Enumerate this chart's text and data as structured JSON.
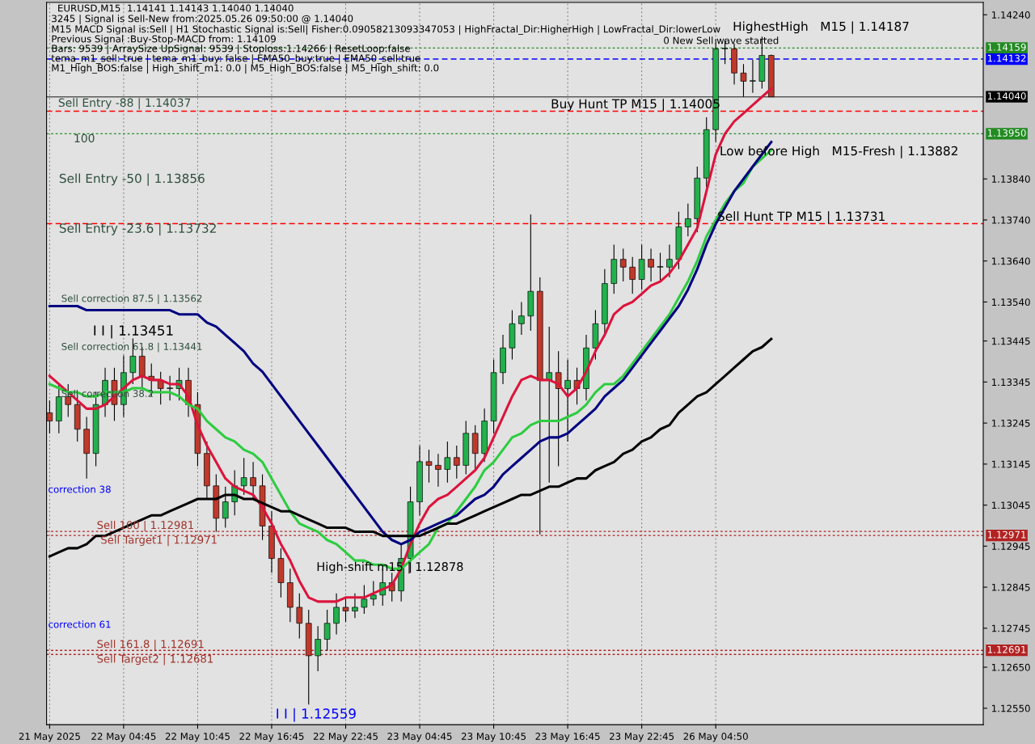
{
  "chart_data": {
    "type": "candlestick",
    "title": "EURUSD,M15  1.14141 1.14143 1.14040 1.14040",
    "categories": [
      "21 May 2025",
      null,
      null,
      null,
      null,
      null,
      null,
      null,
      "22 May 04:45",
      null,
      null,
      null,
      null,
      null,
      null,
      null,
      "22 May 10:45",
      null,
      null,
      null,
      null,
      null,
      null,
      null,
      "22 May 16:45",
      null,
      null,
      null,
      null,
      null,
      null,
      null,
      "22 May 22:45",
      null,
      null,
      null,
      null,
      null,
      null,
      null,
      "23 May 04:45",
      null,
      null,
      null,
      null,
      null,
      null,
      null,
      "23 May 10:45",
      null,
      null,
      null,
      null,
      null,
      null,
      null,
      "23 May 16:45",
      null,
      null,
      null,
      null,
      null,
      null,
      null,
      "23 May 22:45",
      null,
      null,
      null,
      null,
      null,
      null,
      null,
      "26 May 04:50",
      null,
      null,
      null,
      null,
      null,
      null
    ],
    "ohlc": [
      [
        1.1327,
        1.133,
        1.1322,
        1.1325
      ],
      [
        1.1325,
        1.1334,
        1.1322,
        1.13309
      ],
      [
        1.13309,
        1.1334,
        1.1326,
        1.1329
      ],
      [
        1.1329,
        1.1332,
        1.132,
        1.1323
      ],
      [
        1.1323,
        1.1326,
        1.1311,
        1.13171
      ],
      [
        1.13171,
        1.1332,
        1.1314,
        1.1329
      ],
      [
        1.1329,
        1.1338,
        1.1326,
        1.13349
      ],
      [
        1.13349,
        1.1338,
        1.1325,
        1.1329
      ],
      [
        1.1329,
        1.1341,
        1.1326,
        1.13368
      ],
      [
        1.13368,
        1.13451,
        1.1334,
        1.13408
      ],
      [
        1.13408,
        1.1343,
        1.1333,
        1.13359
      ],
      [
        1.13359,
        1.1339,
        1.1331,
        1.13349
      ],
      [
        1.13349,
        1.1337,
        1.1329,
        1.13329
      ],
      [
        1.13329,
        1.1336,
        1.133,
        1.13329
      ],
      [
        1.13329,
        1.1338,
        1.133,
        1.13349
      ],
      [
        1.13349,
        1.1338,
        1.1326,
        1.1329
      ],
      [
        1.1329,
        1.1332,
        1.1314,
        1.13171
      ],
      [
        1.13171,
        1.132,
        1.1306,
        1.13092
      ],
      [
        1.13092,
        1.1312,
        1.1298,
        1.13013
      ],
      [
        1.13013,
        1.1309,
        1.1299,
        1.13053
      ],
      [
        1.13053,
        1.1313,
        1.1302,
        1.13092
      ],
      [
        1.13092,
        1.1316,
        1.1307,
        1.13112
      ],
      [
        1.13112,
        1.1315,
        1.1306,
        1.13092
      ],
      [
        1.13092,
        1.1312,
        1.1296,
        1.12994
      ],
      [
        1.12994,
        1.1303,
        1.1288,
        1.12915
      ],
      [
        1.12915,
        1.1294,
        1.1282,
        1.12856
      ],
      [
        1.12856,
        1.1289,
        1.1276,
        1.12796
      ],
      [
        1.12796,
        1.1283,
        1.1272,
        1.12757
      ],
      [
        1.12757,
        1.1279,
        1.12559,
        1.12678
      ],
      [
        1.12678,
        1.1275,
        1.1264,
        1.12718
      ],
      [
        1.12718,
        1.1279,
        1.1269,
        1.12757
      ],
      [
        1.12757,
        1.1283,
        1.1273,
        1.12796
      ],
      [
        1.12796,
        1.1282,
        1.1276,
        1.12787
      ],
      [
        1.12787,
        1.1283,
        1.1277,
        1.12796
      ],
      [
        1.12796,
        1.1285,
        1.1278,
        1.12816
      ],
      [
        1.12816,
        1.1286,
        1.128,
        1.12826
      ],
      [
        1.12826,
        1.1289,
        1.128,
        1.12856
      ],
      [
        1.12856,
        1.1288,
        1.1281,
        1.12836
      ],
      [
        1.12836,
        1.1295,
        1.1281,
        1.12915
      ],
      [
        1.12915,
        1.1309,
        1.1288,
        1.13053
      ],
      [
        1.13053,
        1.1319,
        1.1302,
        1.13151
      ],
      [
        1.13151,
        1.1318,
        1.131,
        1.13142
      ],
      [
        1.13142,
        1.1317,
        1.1309,
        1.13132
      ],
      [
        1.13132,
        1.132,
        1.131,
        1.13161
      ],
      [
        1.13161,
        1.1319,
        1.1311,
        1.13142
      ],
      [
        1.13142,
        1.1325,
        1.1312,
        1.1322
      ],
      [
        1.1322,
        1.1324,
        1.1313,
        1.13171
      ],
      [
        1.13171,
        1.1328,
        1.1315,
        1.1325
      ],
      [
        1.1325,
        1.134,
        1.1322,
        1.13368
      ],
      [
        1.13368,
        1.1346,
        1.1334,
        1.13428
      ],
      [
        1.13428,
        1.1352,
        1.134,
        1.13487
      ],
      [
        1.13487,
        1.1354,
        1.1346,
        1.13506
      ],
      [
        1.13506,
        1.13753,
        1.1347,
        1.13566
      ],
      [
        1.13566,
        1.136,
        1.12974,
        1.13349
      ],
      [
        1.13349,
        1.1348,
        1.131,
        1.13368
      ],
      [
        1.13368,
        1.1342,
        1.1314,
        1.13329
      ],
      [
        1.13329,
        1.134,
        1.132,
        1.13349
      ],
      [
        1.13349,
        1.1338,
        1.1329,
        1.13329
      ],
      [
        1.13329,
        1.1346,
        1.133,
        1.13428
      ],
      [
        1.13428,
        1.1352,
        1.134,
        1.13487
      ],
      [
        1.13487,
        1.1362,
        1.1346,
        1.13585
      ],
      [
        1.13585,
        1.1368,
        1.1356,
        1.13644
      ],
      [
        1.13644,
        1.1367,
        1.1359,
        1.13625
      ],
      [
        1.13625,
        1.1365,
        1.1356,
        1.13595
      ],
      [
        1.13595,
        1.1368,
        1.1357,
        1.13644
      ],
      [
        1.13644,
        1.1367,
        1.1359,
        1.13625
      ],
      [
        1.13625,
        1.1366,
        1.1359,
        1.13625
      ],
      [
        1.13625,
        1.1368,
        1.136,
        1.13644
      ],
      [
        1.13644,
        1.1376,
        1.1362,
        1.13723
      ],
      [
        1.13723,
        1.1378,
        1.137,
        1.13743
      ],
      [
        1.13743,
        1.1387,
        1.1371,
        1.13842
      ],
      [
        1.13842,
        1.1399,
        1.1382,
        1.1396
      ],
      [
        1.1396,
        1.14181,
        1.1393,
        1.14157
      ],
      [
        1.14157,
        1.1418,
        1.1412,
        1.14157
      ],
      [
        1.14157,
        1.1417,
        1.1407,
        1.14098
      ],
      [
        1.14098,
        1.1412,
        1.1404,
        1.14078
      ],
      [
        1.14078,
        1.1413,
        1.1405,
        1.14078
      ],
      [
        1.14078,
        1.14187,
        1.1406,
        1.14141
      ],
      [
        1.14141,
        1.14143,
        1.1404,
        1.1404
      ]
    ],
    "series": [
      {
        "type": "line",
        "color": "#dc143c",
        "values": [
          1.1336,
          1.1334,
          1.1332,
          1.133,
          1.1328,
          1.1328,
          1.1329,
          1.1331,
          1.1333,
          1.1335,
          1.1336,
          1.1335,
          1.1335,
          1.1334,
          1.1334,
          1.1331,
          1.1324,
          1.1319,
          1.1315,
          1.1311,
          1.1309,
          1.1308,
          1.1307,
          1.1304,
          1.13,
          1.1295,
          1.1291,
          1.1286,
          1.1282,
          1.1281,
          1.1281,
          1.1281,
          1.1282,
          1.1282,
          1.1282,
          1.1283,
          1.1284,
          1.1285,
          1.1289,
          1.1295,
          1.13,
          1.1304,
          1.1306,
          1.1307,
          1.1309,
          1.1311,
          1.1313,
          1.1316,
          1.1321,
          1.1326,
          1.1331,
          1.1335,
          1.1336,
          1.1335,
          1.1335,
          1.1334,
          1.1331,
          1.1333,
          1.1337,
          1.1342,
          1.1346,
          1.1351,
          1.1353,
          1.1354,
          1.1356,
          1.1358,
          1.1359,
          1.1361,
          1.1364,
          1.1368,
          1.1372,
          1.1381,
          1.139,
          1.1395,
          1.1398,
          1.14,
          1.1402,
          1.1404,
          1.1406
        ]
      },
      {
        "type": "line",
        "color": "#2ecc40",
        "values": [
          1.1334,
          1.1333,
          1.1332,
          1.1332,
          1.1331,
          1.1331,
          1.1332,
          1.1332,
          1.1332,
          1.1333,
          1.1333,
          1.1332,
          1.1332,
          1.1332,
          1.1331,
          1.1329,
          1.1328,
          1.1325,
          1.1323,
          1.1321,
          1.132,
          1.1318,
          1.1317,
          1.1315,
          1.1311,
          1.1307,
          1.1303,
          1.13,
          1.1299,
          1.1298,
          1.1296,
          1.1295,
          1.1293,
          1.1291,
          1.1291,
          1.129,
          1.129,
          1.1289,
          1.1289,
          1.1291,
          1.1293,
          1.1295,
          1.1299,
          1.13,
          1.1303,
          1.1306,
          1.1309,
          1.1313,
          1.1315,
          1.1318,
          1.1321,
          1.1322,
          1.1324,
          1.1325,
          1.1325,
          1.1325,
          1.1326,
          1.1327,
          1.1329,
          1.1332,
          1.1334,
          1.1334,
          1.1336,
          1.1339,
          1.1342,
          1.1345,
          1.1348,
          1.1351,
          1.1355,
          1.1359,
          1.1364,
          1.137,
          1.1374,
          1.1378,
          1.1381,
          1.1383,
          1.1387,
          1.1389,
          1.1391
        ]
      },
      {
        "type": "line",
        "color": "#000080",
        "values": [
          1.1353,
          1.1353,
          1.1353,
          1.1353,
          1.1352,
          1.1352,
          1.1352,
          1.1352,
          1.1352,
          1.1352,
          1.1352,
          1.1352,
          1.1352,
          1.1352,
          1.1351,
          1.1351,
          1.1351,
          1.1349,
          1.1348,
          1.1346,
          1.1344,
          1.1342,
          1.1339,
          1.1337,
          1.1334,
          1.1331,
          1.1328,
          1.1325,
          1.1322,
          1.1319,
          1.1316,
          1.1313,
          1.131,
          1.1307,
          1.1304,
          1.1301,
          1.1298,
          1.1296,
          1.1295,
          1.1296,
          1.1298,
          1.1299,
          1.13,
          1.1301,
          1.1302,
          1.1304,
          1.1306,
          1.1307,
          1.1309,
          1.1312,
          1.1314,
          1.1316,
          1.1318,
          1.132,
          1.1321,
          1.1321,
          1.1322,
          1.1324,
          1.1326,
          1.1328,
          1.1331,
          1.1333,
          1.1335,
          1.1338,
          1.1341,
          1.1344,
          1.1347,
          1.135,
          1.1353,
          1.1357,
          1.1362,
          1.1368,
          1.1373,
          1.1377,
          1.1381,
          1.1384,
          1.1387,
          1.139,
          1.1393
        ]
      },
      {
        "type": "line",
        "color": "#000000",
        "values": [
          1.1292,
          1.1293,
          1.1294,
          1.1294,
          1.1295,
          1.1297,
          1.1297,
          1.1298,
          1.1299,
          1.13,
          1.1301,
          1.1302,
          1.1302,
          1.1303,
          1.1304,
          1.1305,
          1.1306,
          1.1306,
          1.1306,
          1.1307,
          1.1307,
          1.1306,
          1.1306,
          1.1305,
          1.1304,
          1.1303,
          1.1303,
          1.1302,
          1.1301,
          1.13,
          1.1299,
          1.1299,
          1.1299,
          1.1298,
          1.1298,
          1.1298,
          1.1297,
          1.1297,
          1.1297,
          1.1297,
          1.1297,
          1.1298,
          1.1299,
          1.13,
          1.13,
          1.1301,
          1.1302,
          1.1303,
          1.1304,
          1.1305,
          1.1306,
          1.1307,
          1.1307,
          1.1308,
          1.1309,
          1.1309,
          1.131,
          1.1311,
          1.1311,
          1.1313,
          1.1314,
          1.1315,
          1.1317,
          1.1318,
          1.132,
          1.1321,
          1.1323,
          1.1324,
          1.1327,
          1.1329,
          1.1331,
          1.1332,
          1.1334,
          1.1336,
          1.1338,
          1.134,
          1.1342,
          1.1343,
          1.1345
        ]
      }
    ],
    "ylim": [
      1.1251,
      1.1427
    ],
    "yticks": [
      {
        "value": 1.1424,
        "label": "1.14240"
      },
      {
        "value": 1.1384,
        "label": "1.13840"
      },
      {
        "value": 1.1374,
        "label": "1.13740"
      },
      {
        "value": 1.1364,
        "label": "1.13640"
      },
      {
        "value": 1.1354,
        "label": "1.13540"
      },
      {
        "value": 1.13445,
        "label": "1.13445"
      },
      {
        "value": 1.13345,
        "label": "1.13345"
      },
      {
        "value": 1.13245,
        "label": "1.13245"
      },
      {
        "value": 1.13145,
        "label": "1.13145"
      },
      {
        "value": 1.13045,
        "label": "1.13045"
      },
      {
        "value": 1.12945,
        "label": "1.12945"
      },
      {
        "value": 1.12845,
        "label": "1.12845"
      },
      {
        "value": 1.12745,
        "label": "1.12745"
      },
      {
        "value": 1.1265,
        "label": "1.12650"
      },
      {
        "value": 1.1255,
        "label": "1.12550"
      }
    ],
    "grid": "x",
    "ref_lines": [
      {
        "axis": "y",
        "value": 1.14159,
        "label": "1.14159",
        "color": "#228b22",
        "line_style": "dotted"
      },
      {
        "axis": "y",
        "value": 1.14132,
        "label": "1.14132",
        "color": "#0000ff",
        "line_style": "dashed"
      },
      {
        "axis": "y",
        "value": 1.1404,
        "label": "1.14040",
        "color": "#000000",
        "line_style": "solid"
      },
      {
        "axis": "y",
        "value": 1.14005,
        "color": "#ff0000",
        "line_style": "dashed"
      },
      {
        "axis": "y",
        "value": 1.1395,
        "label": "1.13950",
        "color": "#228b22",
        "line_style": "dotted"
      },
      {
        "axis": "y",
        "value": 1.13731,
        "color": "#ff0000",
        "line_style": "dashed"
      },
      {
        "axis": "y",
        "value": 1.12981,
        "color": "#b22222",
        "line_style": "dotted"
      },
      {
        "axis": "y",
        "value": 1.12971,
        "label": "1.12971",
        "color": "#b22222",
        "line_style": "dotted"
      },
      {
        "axis": "y",
        "value": 1.12691,
        "label": "1.12691",
        "color": "#b22222",
        "line_style": "dotted"
      },
      {
        "axis": "y",
        "value": 1.12681,
        "color": "#b22222",
        "line_style": "dotted"
      }
    ],
    "annotations": [
      "3245 | Signal is Sell-New from:2025.05.26 09:50:00 @ 1.14040",
      "M15 MACD Signal is:Sell | H1 Stochastic Signal is:Sell| Fisher:0.09058213093347053 | HighFractal_Dir:HigherHigh | LowFractal_Dir:lowerLow",
      "Previous Signal :Buy-Stop-MACD from: 1.14109",
      "Bars: 9539 | ArraySize UpSignal: 9539 | Stoploss:1.14266 | ResetLoop:false",
      "tema_m1_sell: true | tema_m1_buy: false | EMA50_buy:true | EMA50_sell:true",
      "M1_High_BOS:false | High_shift_m1: 0.0 | M5_High_BOS:false | M5_High_shift: 0.0",
      "0 New Sell wave started",
      {
        "text": "Sell Entry -88 | 1.14037",
        "y": 1.14037
      },
      {
        "text": "100",
        "y": 1.1395
      },
      "Sell Entry -50 | 1.13856",
      {
        "text": "Sell Entry -23.6 | 1.13732",
        "y": 1.13732
      },
      "Sell correction 87.5 | 1.13562",
      {
        "text": "Sell correction 61.8 | 1.13441",
        "y": 1.13441
      },
      {
        "text": "Sell correction 38.2",
        "y": 1.13315
      },
      "correction 38",
      "correction 61",
      {
        "text": "Sell 100 | 1.12981",
        "y": 1.12981
      },
      {
        "text": "Sell Target1 | 1.12971",
        "y": 1.12971
      },
      {
        "text": "Sell 161.8 | 1.12691",
        "y": 1.12691
      },
      {
        "text": "Sell Target2 | 1.12681",
        "y": 1.12681
      },
      {
        "text": "I I | 1.13451",
        "y": 1.13451
      },
      "I I | 1.12559",
      {
        "text": "High-shift m15 | 1.12878",
        "y": 1.12878
      },
      "HighestHigh   M15 | 1.14187",
      {
        "text": "Buy Hunt TP M15 | 1.14005",
        "y": 1.14005
      },
      "Low before High   M15-Fresh | 1.13882",
      {
        "text": "Sell Hunt TP M15 | 1.13731",
        "y": 1.13731
      }
    ]
  }
}
